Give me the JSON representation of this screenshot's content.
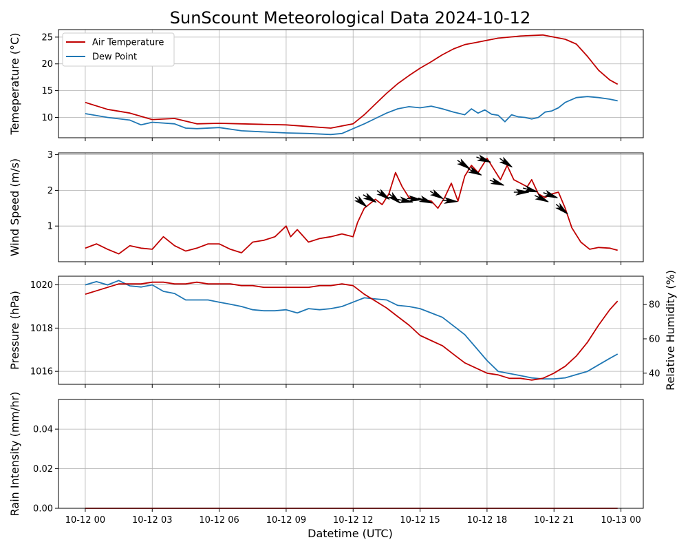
{
  "figure": {
    "title": "SunScount Meteorological Data 2024-10-12",
    "xlabel": "Datetime (UTC)"
  },
  "colors": {
    "red": "#c00000",
    "blue": "#1f77b4",
    "grid": "#b0b0b0",
    "arrow": "#000000"
  },
  "chart_data": [
    {
      "type": "line",
      "panel": "temperature",
      "ylabel": "Temeperature (°C)",
      "ylim": [
        6.2,
        26.4
      ],
      "yticks": [
        10,
        15,
        20,
        25
      ],
      "xlim_hours": [
        -1.2,
        25.0
      ],
      "xticks_hours": [
        0,
        3,
        6,
        9,
        12,
        15,
        18,
        21,
        24
      ],
      "xtick_labels": [
        "10-12 00",
        "10-12 03",
        "10-12 06",
        "10-12 09",
        "10-12 12",
        "10-12 15",
        "10-12 18",
        "10-12 21",
        "10-13 00"
      ],
      "legend": "top-left",
      "grid": true,
      "series": [
        {
          "name": "Air Temperature",
          "color": "#c00000",
          "x_hours": [
            0,
            1,
            2,
            3,
            4,
            5,
            6,
            7,
            8,
            9,
            10,
            11,
            12,
            12.5,
            13,
            13.5,
            14,
            14.5,
            15,
            15.5,
            16,
            16.5,
            17,
            17.5,
            18,
            18.5,
            19,
            19.5,
            20,
            20.5,
            21,
            21.5,
            22,
            22.5,
            23,
            23.5,
            23.85
          ],
          "values": [
            12.8,
            11.5,
            10.8,
            9.6,
            9.8,
            8.8,
            8.9,
            8.8,
            8.7,
            8.6,
            8.3,
            8.0,
            8.8,
            10.5,
            12.5,
            14.5,
            16.3,
            17.8,
            19.2,
            20.4,
            21.7,
            22.8,
            23.6,
            24.0,
            24.4,
            24.8,
            25.0,
            25.2,
            25.3,
            25.4,
            25.0,
            24.6,
            23.7,
            21.4,
            18.8,
            17.0,
            16.2
          ]
        },
        {
          "name": "Dew Point",
          "color": "#1f77b4",
          "x_hours": [
            0,
            1,
            2,
            2.5,
            3,
            4,
            4.5,
            5,
            6,
            7,
            8,
            9,
            10,
            11,
            11.5,
            12,
            12.5,
            13,
            13.5,
            14,
            14.5,
            15,
            15.5,
            16,
            16.5,
            17,
            17.3,
            17.6,
            17.9,
            18.2,
            18.5,
            18.8,
            19.1,
            19.4,
            19.7,
            20,
            20.3,
            20.6,
            20.9,
            21.2,
            21.5,
            22,
            22.5,
            23,
            23.5,
            23.85
          ],
          "values": [
            10.7,
            10.0,
            9.5,
            8.6,
            9.1,
            8.8,
            8.0,
            7.9,
            8.1,
            7.5,
            7.3,
            7.1,
            7.0,
            6.8,
            7.0,
            7.9,
            8.8,
            9.8,
            10.8,
            11.6,
            12.0,
            11.8,
            12.1,
            11.6,
            11.0,
            10.5,
            11.6,
            10.8,
            11.4,
            10.6,
            10.4,
            9.2,
            10.5,
            10.1,
            10.0,
            9.7,
            10.0,
            11.0,
            11.2,
            11.8,
            12.8,
            13.7,
            13.9,
            13.7,
            13.4,
            13.1
          ]
        }
      ]
    },
    {
      "type": "line",
      "panel": "wind",
      "ylabel": "Wind Speed (m/s)",
      "ylim": [
        0.0,
        3.05
      ],
      "yticks": [
        1,
        2,
        3
      ],
      "grid": true,
      "series": [
        {
          "color": "#c00000",
          "x_hours": [
            0,
            0.5,
            1,
            1.5,
            2,
            2.5,
            3,
            3.5,
            4,
            4.5,
            5,
            5.5,
            6,
            6.5,
            7,
            7.5,
            8,
            8.5,
            9,
            9.2,
            9.5,
            10,
            10.5,
            11,
            11.5,
            12,
            12.2,
            12.5,
            13,
            13.3,
            13.6,
            13.9,
            14.2,
            14.5,
            15,
            15.5,
            15.8,
            16.1,
            16.4,
            16.7,
            17,
            17.3,
            17.6,
            18,
            18.3,
            18.6,
            18.9,
            19.2,
            19.5,
            19.8,
            20,
            20.3,
            20.6,
            20.9,
            21.2,
            21.5,
            21.8,
            22.2,
            22.6,
            23,
            23.5,
            23.85
          ],
          "values": [
            0.38,
            0.5,
            0.35,
            0.22,
            0.45,
            0.38,
            0.35,
            0.7,
            0.45,
            0.3,
            0.38,
            0.5,
            0.5,
            0.35,
            0.25,
            0.55,
            0.6,
            0.7,
            1.0,
            0.7,
            0.9,
            0.55,
            0.65,
            0.7,
            0.78,
            0.7,
            1.1,
            1.5,
            1.75,
            1.6,
            1.9,
            2.5,
            2.1,
            1.8,
            1.75,
            1.7,
            1.5,
            1.8,
            2.2,
            1.7,
            2.4,
            2.7,
            2.5,
            2.9,
            2.6,
            2.3,
            2.7,
            2.3,
            2.2,
            2.1,
            2.3,
            1.9,
            1.8,
            1.9,
            1.95,
            1.5,
            0.95,
            0.55,
            0.35,
            0.4,
            0.38,
            0.32
          ]
        }
      ],
      "wind_barbs": {
        "color": "#000000",
        "x_hours": [
          12.4,
          12.8,
          13.4,
          13.9,
          14.4,
          14.8,
          15.3,
          15.8,
          16.4,
          17.0,
          17.5,
          17.9,
          18.5,
          18.9,
          19.6,
          20.0,
          20.5,
          20.9,
          21.4
        ],
        "speed": [
          1.65,
          1.75,
          1.85,
          1.75,
          1.7,
          1.75,
          1.7,
          1.85,
          1.7,
          2.7,
          2.5,
          2.85,
          2.2,
          2.75,
          1.95,
          2.0,
          1.75,
          1.85,
          1.45
        ],
        "direction_deg": [
          220,
          210,
          215,
          220,
          190,
          185,
          200,
          210,
          185,
          215,
          205,
          200,
          200,
          215,
          180,
          195,
          205,
          200,
          220
        ]
      }
    },
    {
      "type": "line",
      "panel": "pressure-humidity",
      "ylabel_left": "Pressure (hPa)",
      "ylabel_right": "Relative Humidity (%)",
      "ylim_left": [
        1015.4,
        1020.4
      ],
      "yticks_left": [
        1016,
        1018,
        1020
      ],
      "ylim_right": [
        33.5,
        96.5
      ],
      "yticks_right": [
        40,
        60,
        80
      ],
      "grid": true,
      "series": [
        {
          "name": "Pressure",
          "axis": "left",
          "color": "#1f77b4",
          "x_hours": [
            0,
            0.5,
            1,
            1.5,
            2,
            2.5,
            3,
            3.5,
            4,
            4.5,
            5,
            5.5,
            6,
            6.5,
            7,
            7.5,
            8,
            8.5,
            9,
            9.5,
            10,
            10.5,
            11,
            11.5,
            12,
            12.5,
            13,
            13.5,
            14,
            14.5,
            15,
            15.5,
            16,
            16.5,
            17,
            17.5,
            18,
            18.5,
            19,
            19.5,
            20,
            20.5,
            21,
            21.5,
            22,
            22.5,
            23,
            23.5,
            23.85
          ],
          "values": [
            1020.0,
            1020.15,
            1020.0,
            1020.2,
            1019.95,
            1019.9,
            1020.0,
            1019.7,
            1019.6,
            1019.3,
            1019.3,
            1019.3,
            1019.2,
            1019.1,
            1019.0,
            1018.85,
            1018.8,
            1018.8,
            1018.85,
            1018.7,
            1018.9,
            1018.85,
            1018.9,
            1019.0,
            1019.2,
            1019.4,
            1019.35,
            1019.3,
            1019.05,
            1019.0,
            1018.9,
            1018.7,
            1018.5,
            1018.1,
            1017.7,
            1017.1,
            1016.5,
            1016.0,
            1015.9,
            1015.8,
            1015.7,
            1015.65,
            1015.65,
            1015.7,
            1015.85,
            1016.0,
            1016.3,
            1016.6,
            1016.8
          ]
        },
        {
          "name": "Relative Humidity",
          "axis": "right",
          "color": "#c00000",
          "x_hours": [
            0,
            0.5,
            1,
            1.5,
            2,
            2.5,
            3,
            3.5,
            4,
            4.5,
            5,
            5.5,
            6,
            6.5,
            7,
            7.5,
            8,
            8.5,
            9,
            9.5,
            10,
            10.5,
            11,
            11.5,
            12,
            12.5,
            13,
            13.5,
            14,
            14.5,
            15,
            15.5,
            16,
            16.5,
            17,
            17.5,
            18,
            18.5,
            19,
            19.5,
            20,
            20.5,
            21,
            21.5,
            22,
            22.5,
            23,
            23.5,
            23.85
          ],
          "values": [
            86,
            88,
            90,
            92,
            92,
            92,
            93,
            93,
            92,
            92,
            93,
            92,
            92,
            92,
            91,
            91,
            90,
            90,
            90,
            90,
            90,
            91,
            91,
            92,
            91,
            86,
            82,
            78,
            73,
            68,
            62,
            59,
            56,
            51,
            46,
            43,
            40,
            39,
            37,
            37,
            36,
            37,
            40,
            44,
            50,
            58,
            68,
            77,
            82
          ]
        }
      ]
    },
    {
      "type": "line",
      "panel": "rain",
      "ylabel": "Rain Intensity (mm/hr)",
      "ylim": [
        0.0,
        0.055
      ],
      "yticks": [
        0.0,
        0.02,
        0.04
      ],
      "ytick_labels": [
        "0.00",
        "0.02",
        "0.04"
      ],
      "grid": true,
      "series": [
        {
          "color": "#c00000",
          "x_hours": [
            0,
            23.85
          ],
          "values": [
            0.0,
            0.0
          ]
        }
      ]
    }
  ]
}
